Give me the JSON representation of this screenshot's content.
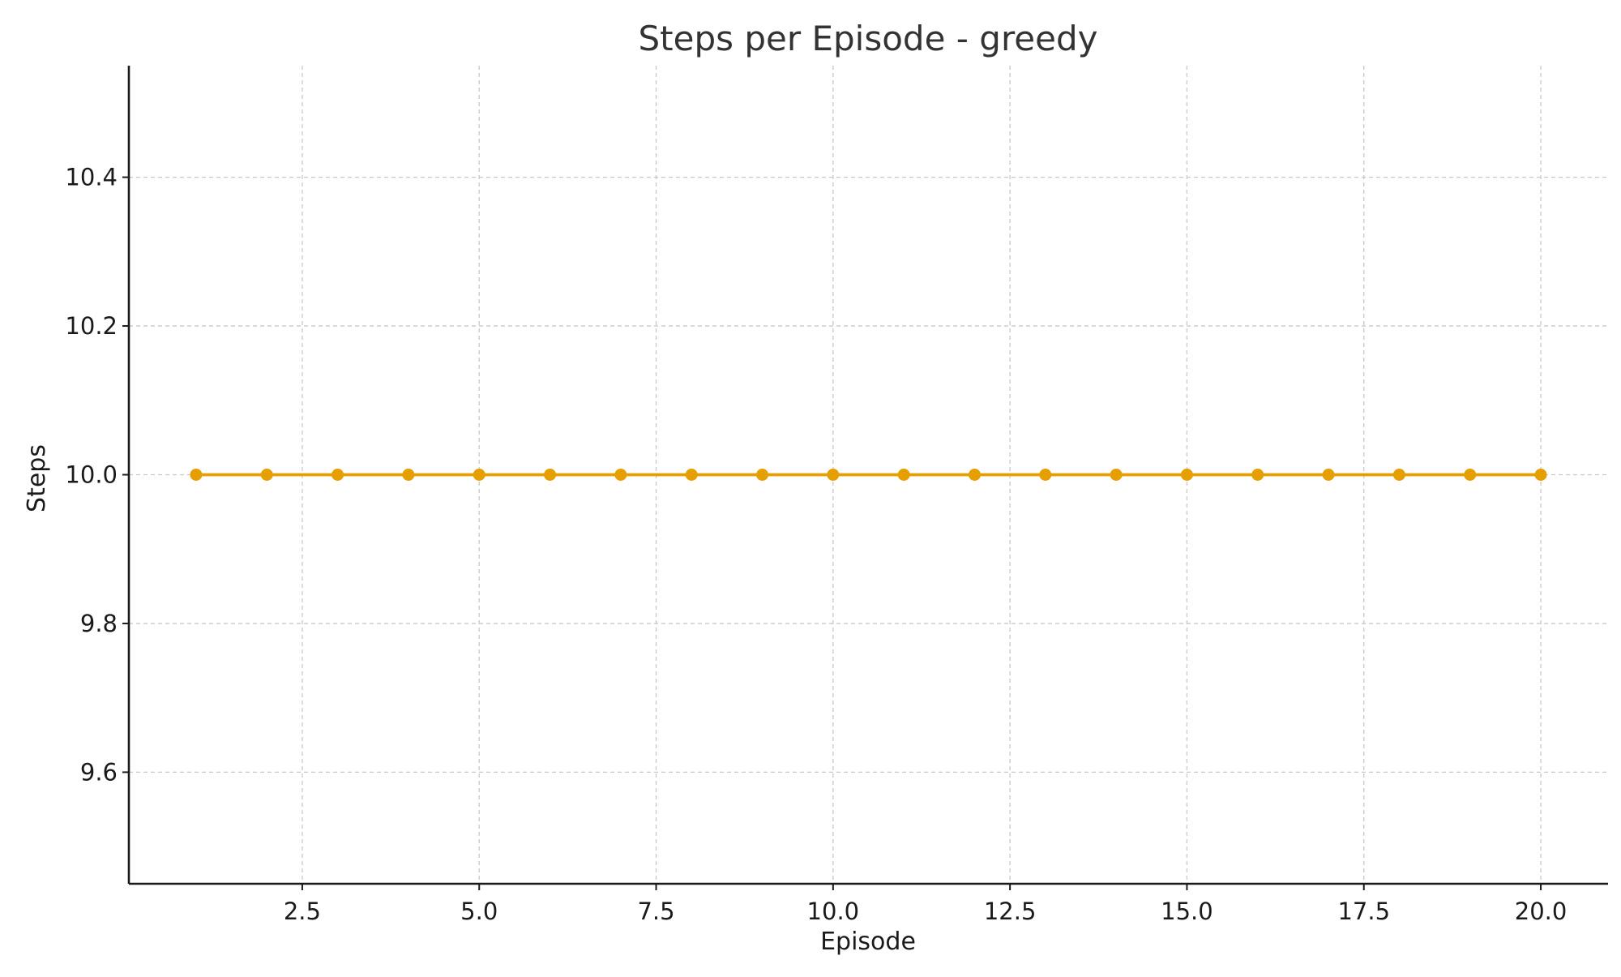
{
  "chart_data": {
    "type": "line",
    "title": "Steps per Episode - greedy",
    "xlabel": "Episode",
    "ylabel": "Steps",
    "xlim": [
      0.05,
      20.95
    ],
    "ylim": [
      9.45,
      10.55
    ],
    "xticks": [
      2.5,
      5.0,
      7.5,
      10.0,
      12.5,
      15.0,
      17.5,
      20.0
    ],
    "xtick_labels": [
      "2.5",
      "5.0",
      "7.5",
      "10.0",
      "12.5",
      "15.0",
      "17.5",
      "20.0"
    ],
    "yticks": [
      9.6,
      9.8,
      10.0,
      10.2,
      10.4
    ],
    "ytick_labels": [
      "9.6",
      "9.8",
      "10.0",
      "10.2",
      "10.4"
    ],
    "grid": true,
    "series": [
      {
        "color": "#e69f00",
        "marker": "circle",
        "x": [
          1,
          2,
          3,
          4,
          5,
          6,
          7,
          8,
          9,
          10,
          11,
          12,
          13,
          14,
          15,
          16,
          17,
          18,
          19,
          20
        ],
        "y": [
          10,
          10,
          10,
          10,
          10,
          10,
          10,
          10,
          10,
          10,
          10,
          10,
          10,
          10,
          10,
          10,
          10,
          10,
          10,
          10
        ]
      }
    ]
  }
}
